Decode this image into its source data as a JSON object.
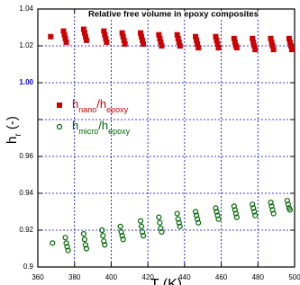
{
  "chart_data": {
    "type": "scatter",
    "title": "Relative free volume in epoxy composites",
    "xlabel": "T (K)",
    "ylabel": [
      "h",
      "r",
      " (-)"
    ],
    "xlim": [
      360,
      500
    ],
    "xticks": [
      360,
      380,
      400,
      420,
      440,
      460,
      480,
      500
    ],
    "ylim": [
      0.9,
      1.04
    ],
    "yticks": [
      0.9,
      0.92,
      0.94,
      0.96,
      {
        "value": 0.98,
        "label": null
      },
      {
        "value": 1,
        "label": "1.00",
        "color": "#0000cc"
      },
      1.02,
      1.04
    ],
    "grid": true,
    "series": [
      {
        "name": [
          "h",
          "nano",
          "/h",
          "epoxy"
        ],
        "color": "#cc0000",
        "marker": "square",
        "x": [
          367,
          374,
          374.5,
          375,
          375.5,
          385,
          385.5,
          386,
          386.5,
          396,
          396.5,
          397,
          397.5,
          406,
          406.5,
          407,
          407.5,
          416,
          416.5,
          417,
          417.5,
          426,
          426.5,
          427,
          427.5,
          436,
          436.5,
          437,
          437.5,
          446,
          446.5,
          447,
          447.5,
          457,
          457.5,
          458,
          458.5,
          467,
          467.5,
          468,
          468.5,
          477,
          477.5,
          478,
          478.5,
          487,
          487.5,
          488,
          488.5,
          497,
          497.5,
          498,
          498.5
        ],
        "values": [
          1.025,
          1.028,
          1.026,
          1.024,
          1.022,
          1.029,
          1.027,
          1.025,
          1.023,
          1.028,
          1.026,
          1.024,
          1.022,
          1.027,
          1.025,
          1.023,
          1.021,
          1.027,
          1.025,
          1.023,
          1.021,
          1.026,
          1.024,
          1.022,
          1.02,
          1.026,
          1.024,
          1.022,
          1.02,
          1.025,
          1.023,
          1.021,
          1.019,
          1.025,
          1.023,
          1.021,
          1.019,
          1.024,
          1.022,
          1.02,
          1.019,
          1.024,
          1.022,
          1.02,
          1.018,
          1.024,
          1.022,
          1.02,
          1.018,
          1.024,
          1.022,
          1.02,
          1.018
        ]
      },
      {
        "name": [
          "h",
          "micro",
          "/h",
          "epoxy"
        ],
        "color": "#006600",
        "marker": "circle",
        "x": [
          368,
          375,
          375.5,
          376,
          376.5,
          385,
          385.5,
          386,
          386.5,
          395,
          395.5,
          396,
          396.5,
          405,
          405.5,
          406,
          406.5,
          416,
          416.5,
          417,
          417.5,
          426,
          426.5,
          427,
          427.5,
          436,
          436.5,
          437,
          437.5,
          446,
          446.5,
          447,
          447.5,
          457,
          457.5,
          458,
          458.5,
          467,
          467.5,
          468,
          468.5,
          477,
          477.5,
          478,
          478.5,
          487,
          487.5,
          488,
          488.5,
          496,
          496.5,
          497,
          497.5
        ],
        "values": [
          0.913,
          0.916,
          0.913,
          0.911,
          0.909,
          0.918,
          0.915,
          0.912,
          0.91,
          0.92,
          0.917,
          0.914,
          0.912,
          0.922,
          0.919,
          0.917,
          0.915,
          0.925,
          0.922,
          0.919,
          0.917,
          0.927,
          0.924,
          0.921,
          0.919,
          0.929,
          0.926,
          0.924,
          0.922,
          0.93,
          0.928,
          0.926,
          0.924,
          0.932,
          0.93,
          0.928,
          0.926,
          0.933,
          0.931,
          0.929,
          0.927,
          0.934,
          0.932,
          0.93,
          0.928,
          0.935,
          0.933,
          0.931,
          0.929,
          0.936,
          0.934,
          0.932,
          0.931
        ]
      }
    ]
  }
}
